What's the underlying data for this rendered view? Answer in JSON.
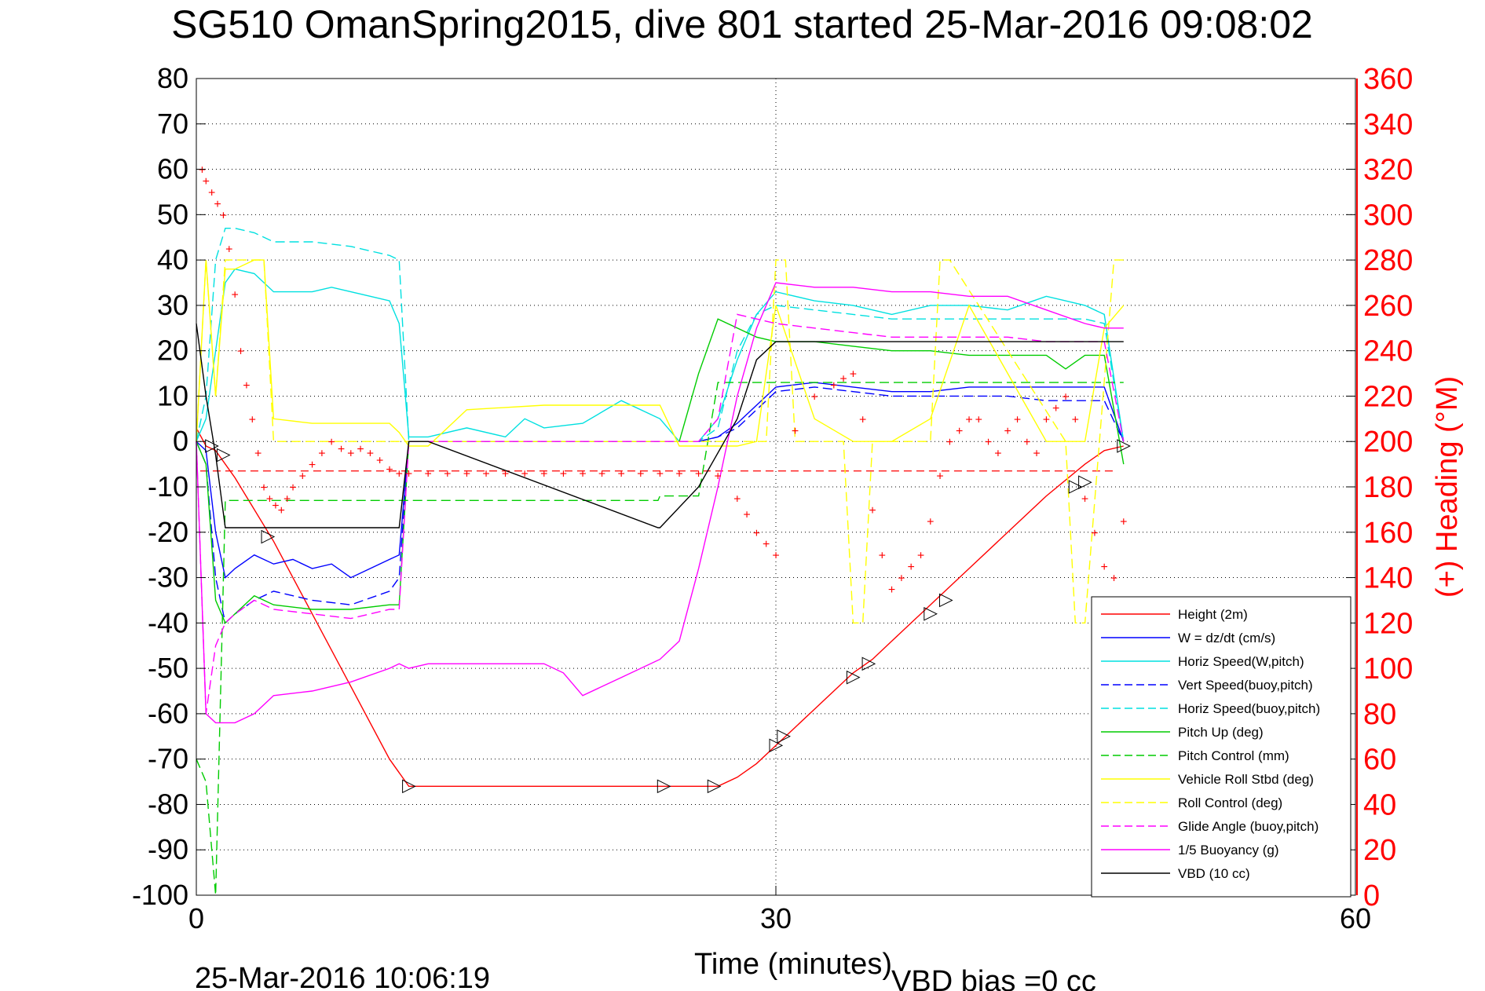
{
  "chart_data": {
    "type": "line",
    "title": "SG510 OmanSpring2015, dive 801 started 25-Mar-2016 09:08:02",
    "xlabel": "Time (minutes)",
    "ylabel_right": "(+) Heading (°M)",
    "xlim": [
      0,
      60
    ],
    "ylim": [
      -100,
      80
    ],
    "y2lim": [
      0,
      360
    ],
    "xticks": [
      0,
      30,
      60
    ],
    "yticks": [
      80,
      70,
      60,
      50,
      40,
      30,
      20,
      10,
      0,
      -10,
      -20,
      -30,
      -40,
      -50,
      -60,
      -70,
      -80,
      -90,
      -100
    ],
    "y2ticks": [
      360,
      340,
      320,
      300,
      280,
      260,
      240,
      220,
      200,
      180,
      160,
      140,
      120,
      100,
      80,
      60,
      40,
      20,
      0
    ],
    "grid": "dotted",
    "legend_position": "bottom-right",
    "footer_date": "25-Mar-2016 10:06:19",
    "footer_bias": "VBD bias =0 cc",
    "series": [
      {
        "name": "Height (2m)",
        "color": "#ff0000",
        "style": "solid",
        "x": [
          0,
          0.5,
          1,
          2,
          4,
          6,
          8,
          10,
          11,
          12,
          14,
          18,
          22,
          24,
          26,
          27,
          28,
          29,
          30,
          31,
          32,
          33,
          34,
          35,
          36,
          37,
          38,
          39,
          40,
          42,
          44,
          46,
          47,
          48
        ],
        "y": [
          3,
          -1,
          -2,
          -8,
          -22,
          -38,
          -54,
          -70,
          -76,
          -76,
          -76,
          -76,
          -76,
          -76,
          -76,
          -76,
          -74,
          -71,
          -67,
          -63,
          -59,
          -55,
          -51,
          -48,
          -44,
          -40,
          -36,
          -32,
          -28,
          -20,
          -12,
          -5,
          -2,
          -1
        ]
      },
      {
        "name": "W = dz/dt (cm/s)",
        "color": "#0000ff",
        "style": "solid",
        "x": [
          0,
          0.5,
          1,
          1.5,
          2,
          3,
          4,
          5,
          6,
          7,
          8,
          9,
          10,
          10.5,
          11,
          12,
          16,
          20,
          24,
          26,
          27,
          28,
          29,
          30,
          32,
          34,
          36,
          38,
          40,
          42,
          44,
          46,
          47,
          48
        ],
        "y": [
          0,
          -2,
          -20,
          -30,
          -28,
          -25,
          -27,
          -26,
          -28,
          -27,
          -30,
          -28,
          -26,
          -25,
          0,
          0,
          0,
          0,
          0,
          0,
          1,
          4,
          8,
          12,
          13,
          12,
          11,
          11,
          12,
          12,
          12,
          12,
          12,
          0
        ]
      },
      {
        "name": "Horiz Speed(W,pitch)",
        "color": "#00e0e0",
        "style": "solid",
        "x": [
          0,
          0.5,
          1,
          1.5,
          2,
          3,
          4,
          5,
          6,
          7,
          8,
          9,
          10,
          10.5,
          11,
          12,
          14,
          16,
          17,
          18,
          20,
          22,
          24,
          25,
          26,
          27,
          28,
          29,
          30,
          32,
          34,
          36,
          38,
          40,
          42,
          44,
          46,
          47,
          48
        ],
        "y": [
          0,
          5,
          20,
          35,
          38,
          37,
          33,
          33,
          33,
          34,
          33,
          32,
          31,
          26,
          1,
          1,
          3,
          1,
          5,
          3,
          4,
          9,
          5,
          0,
          0,
          5,
          18,
          28,
          33,
          31,
          30,
          28,
          30,
          30,
          29,
          32,
          30,
          28,
          0
        ]
      },
      {
        "name": "Vert Speed(buoy,pitch)",
        "color": "#0000ff",
        "style": "dashed",
        "x": [
          0,
          0.5,
          1,
          1.5,
          2,
          3,
          4,
          6,
          8,
          10,
          10.5,
          11,
          12,
          20,
          24,
          26,
          27,
          28,
          29,
          30,
          32,
          34,
          36,
          38,
          40,
          42,
          44,
          46,
          47,
          48
        ],
        "y": [
          0,
          -5,
          -30,
          -40,
          -38,
          -35,
          -33,
          -35,
          -36,
          -33,
          -30,
          0,
          0,
          0,
          0,
          0,
          1,
          3,
          7,
          11,
          12,
          11,
          10,
          10,
          10,
          10,
          9,
          9,
          9,
          0
        ]
      },
      {
        "name": "Horiz Speed(buoy,pitch)",
        "color": "#00e0e0",
        "style": "dashed",
        "x": [
          0,
          0.5,
          1,
          1.5,
          2,
          3,
          4,
          6,
          8,
          10,
          10.5,
          11,
          12,
          20,
          24,
          26,
          27,
          28,
          29,
          30,
          32,
          34,
          36,
          38,
          40,
          42,
          44,
          46,
          47,
          48
        ],
        "y": [
          0,
          10,
          40,
          47,
          47,
          46,
          44,
          44,
          43,
          41,
          40,
          0,
          0,
          0,
          0,
          0,
          3,
          20,
          28,
          30,
          29,
          28,
          27,
          27,
          27,
          27,
          27,
          27,
          26,
          0
        ]
      },
      {
        "name": "Pitch Up (deg)",
        "color": "#00cc00",
        "style": "solid",
        "x": [
          0,
          0.5,
          1,
          1.5,
          2,
          3,
          4,
          6,
          8,
          10,
          10.5,
          11,
          12,
          20,
          23,
          24,
          25,
          26,
          27,
          28,
          29,
          30,
          32,
          34,
          36,
          38,
          40,
          42,
          44,
          45,
          46,
          47,
          48
        ],
        "y": [
          0,
          -5,
          -35,
          -40,
          -38,
          -34,
          -36,
          -37,
          -37,
          -36,
          -36,
          0,
          0,
          0,
          0,
          0,
          0,
          15,
          27,
          25,
          23,
          22,
          22,
          21,
          20,
          20,
          19,
          19,
          19,
          16,
          19,
          19,
          -5
        ]
      },
      {
        "name": "Pitch Control (mm)",
        "color": "#00cc00",
        "style": "dashed",
        "x": [
          0,
          0.5,
          1,
          1.5,
          20,
          23.9,
          24,
          26,
          27,
          28,
          48
        ],
        "y": [
          -70,
          -75,
          -100,
          -13,
          -13,
          -13,
          -12,
          -12,
          13,
          13,
          13
        ]
      },
      {
        "name": "Vehicle Roll Stbd (deg)",
        "color": "#ffff00",
        "style": "solid",
        "x": [
          0,
          0.5,
          1,
          1.5,
          2,
          3,
          3.5,
          4,
          6,
          8,
          10,
          10.5,
          11,
          12,
          14,
          18,
          22,
          24,
          25,
          28,
          29,
          30,
          32,
          34,
          36,
          38,
          40,
          44,
          46,
          47,
          48
        ],
        "y": [
          0,
          40,
          10,
          38,
          38,
          40,
          40,
          5,
          4,
          4,
          4,
          2,
          -1,
          -1,
          7,
          8,
          8,
          8,
          -1,
          -1,
          0,
          30,
          5,
          0,
          0,
          5,
          30,
          0,
          0,
          25,
          30
        ]
      },
      {
        "name": "Roll Control (deg)",
        "color": "#ffff00",
        "style": "dashed",
        "x": [
          0,
          0.5,
          1,
          1.5,
          2,
          3,
          3.5,
          4,
          10,
          11,
          24,
          25,
          29.5,
          30,
          30.5,
          31,
          33.5,
          34,
          34.5,
          35,
          38,
          38.5,
          39,
          45,
          45.5,
          46,
          47.5,
          48
        ],
        "y": [
          0,
          40,
          10,
          40,
          40,
          40,
          40,
          0,
          0,
          0,
          0,
          0,
          0,
          40,
          40,
          0,
          0,
          -40,
          -40,
          0,
          0,
          40,
          40,
          0,
          -40,
          -40,
          40,
          40
        ]
      },
      {
        "name": "Glide Angle (buoy,pitch)",
        "color": "#ff00ff",
        "style": "dashed",
        "x": [
          0,
          0.5,
          1,
          1.5,
          2,
          3,
          4,
          6,
          8,
          10,
          10.5,
          11,
          12,
          20,
          24,
          26,
          27,
          28,
          29,
          30,
          32,
          34,
          36,
          38,
          40,
          42,
          44,
          46,
          47,
          48
        ],
        "y": [
          0,
          -60,
          -45,
          -40,
          -38,
          -35,
          -37,
          -38,
          -39,
          -37,
          -37,
          0,
          0,
          0,
          0,
          0,
          5,
          28,
          27,
          26,
          25,
          24,
          23,
          23,
          23,
          23,
          22,
          22,
          22,
          0
        ]
      },
      {
        "name": "1/5 Buoyancy (g)",
        "color": "#ff00ff",
        "style": "solid",
        "x": [
          0,
          0.5,
          1,
          1.5,
          2,
          3,
          4,
          6,
          8,
          10,
          10.5,
          11,
          12,
          18,
          19,
          20,
          22,
          24,
          25,
          26,
          27,
          28,
          29,
          30,
          32,
          34,
          36,
          38,
          40,
          42,
          44,
          46,
          47,
          48
        ],
        "y": [
          0,
          -60,
          -62,
          -62,
          -62,
          -60,
          -56,
          -55,
          -53,
          -50,
          -49,
          -50,
          -49,
          -49,
          -51,
          -56,
          -52,
          -48,
          -44,
          -28,
          -10,
          10,
          25,
          35,
          34,
          34,
          33,
          33,
          32,
          32,
          29,
          26,
          25,
          25
        ]
      },
      {
        "name": "VBD (10 cc)",
        "color": "#000000",
        "style": "solid",
        "x": [
          0,
          0.5,
          1,
          1.5,
          10,
          10.5,
          11,
          12,
          23.9,
          24,
          26,
          28,
          29,
          30,
          48
        ],
        "y": [
          26,
          10,
          -3,
          -19,
          -19,
          -19,
          0,
          0,
          -19,
          -19,
          -10,
          5,
          18,
          22,
          22
        ]
      }
    ],
    "heading_marker": "+",
    "heading_color": "#ff0000",
    "heading_series": {
      "x": [
        0.3,
        0.5,
        0.8,
        1.1,
        1.4,
        1.7,
        2,
        2.3,
        2.6,
        2.9,
        3.2,
        3.5,
        3.8,
        4.1,
        4.4,
        4.7,
        5,
        5.5,
        6,
        6.5,
        7,
        7.5,
        8,
        8.5,
        9,
        9.5,
        10,
        10.5,
        11,
        12,
        13,
        14,
        15,
        16,
        17,
        18,
        19,
        20,
        21,
        22,
        23,
        24,
        25,
        26,
        27,
        28,
        28.5,
        29,
        29.5,
        30,
        31,
        32,
        33,
        33.5,
        34,
        34.5,
        35,
        35.5,
        36,
        36.5,
        37,
        37.5,
        38,
        38.5,
        39,
        39.5,
        40,
        40.5,
        41,
        41.5,
        42,
        42.5,
        43,
        43.5,
        44,
        44.5,
        45,
        45.5,
        46,
        46.5,
        47,
        47.5,
        48
      ],
      "y": [
        320,
        315,
        310,
        305,
        300,
        285,
        265,
        240,
        225,
        210,
        195,
        180,
        175,
        172,
        170,
        175,
        180,
        185,
        190,
        195,
        200,
        197,
        195,
        197,
        195,
        192,
        188,
        186,
        186,
        186,
        186,
        186,
        186,
        186,
        186,
        186,
        186,
        186,
        186,
        186,
        186,
        186,
        186,
        186,
        185,
        175,
        168,
        160,
        155,
        150,
        205,
        220,
        225,
        228,
        230,
        210,
        170,
        150,
        135,
        140,
        145,
        150,
        165,
        185,
        200,
        205,
        210,
        210,
        200,
        195,
        205,
        210,
        200,
        195,
        210,
        215,
        220,
        210,
        175,
        160,
        145,
        140,
        165
      ]
    },
    "triangle_markers": [
      {
        "x": 0.8,
        "y": -1
      },
      {
        "x": 1.4,
        "y": -3
      },
      {
        "x": 3.7,
        "y": -21
      },
      {
        "x": 11,
        "y": -76
      },
      {
        "x": 24.2,
        "y": -76
      },
      {
        "x": 26.8,
        "y": -76
      },
      {
        "x": 30,
        "y": -67
      },
      {
        "x": 30.4,
        "y": -65
      },
      {
        "x": 34,
        "y": -52
      },
      {
        "x": 34.8,
        "y": -49
      },
      {
        "x": 38,
        "y": -38
      },
      {
        "x": 38.8,
        "y": -35
      },
      {
        "x": 45.5,
        "y": -10
      },
      {
        "x": 46,
        "y": -9
      },
      {
        "x": 48,
        "y": -1
      }
    ],
    "reference_line": {
      "y": -6.5,
      "color": "#ff0000",
      "style": "dashed"
    }
  }
}
